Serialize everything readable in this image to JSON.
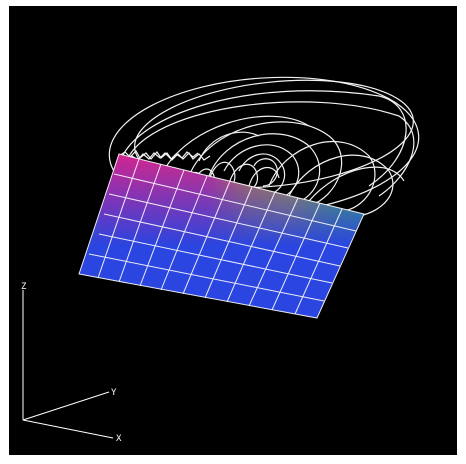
{
  "axes": {
    "z_label": "Z",
    "y_label": "Y",
    "x_label": "X",
    "color": "#ffffff"
  },
  "colors": {
    "background": "#000000",
    "surface_base": "#2a45e0",
    "mesh_lines": "#ffffff",
    "streamlines": "#ffffff",
    "gradient_hot": "#e0208a",
    "gradient_warm": "#d8a020",
    "gradient_green": "#40d040"
  },
  "icons": {
    "axis_triad": "xyz-axes-icon"
  }
}
